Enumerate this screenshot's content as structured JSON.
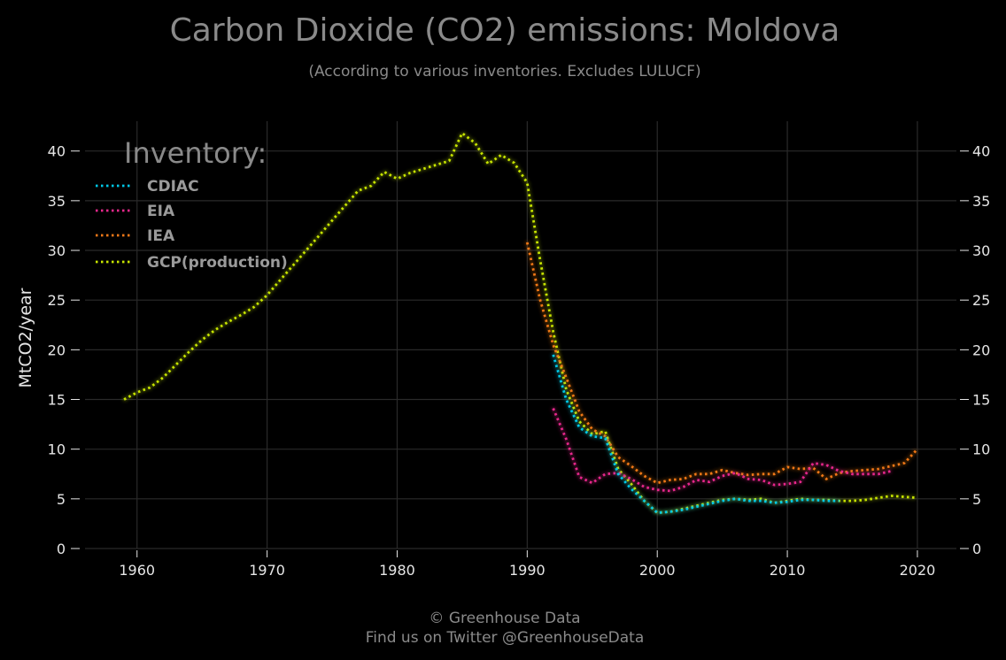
{
  "chart_data": {
    "type": "line",
    "title": "Carbon Dioxide (CO2) emissions: Moldova",
    "subtitle": "(According to various inventories. Excludes LULUCF)",
    "xlabel": "",
    "ylabel": "MtCO2/year",
    "xlim": [
      1956,
      2023
    ],
    "ylim": [
      0,
      43
    ],
    "xticks": [
      1960,
      1970,
      1980,
      1990,
      2000,
      2010,
      2020
    ],
    "yticks": [
      0,
      5,
      10,
      15,
      20,
      25,
      30,
      35,
      40
    ],
    "grid": true,
    "legend": {
      "title": "Inventory:",
      "placement": "top-left"
    },
    "series": [
      {
        "name": "CDIAC",
        "color": "#00c8e8",
        "x": [
          1992,
          1993,
          1994,
          1995,
          1996,
          1997,
          1998,
          1999,
          2000,
          2001,
          2002,
          2003,
          2004,
          2005,
          2006,
          2007,
          2008,
          2009,
          2010,
          2011,
          2012,
          2013,
          2014
        ],
        "y": [
          19.5,
          15.0,
          12.2,
          11.3,
          11.1,
          7.5,
          6.0,
          4.8,
          3.6,
          3.7,
          3.9,
          4.2,
          4.5,
          4.8,
          5.0,
          4.8,
          4.8,
          4.6,
          4.7,
          4.9,
          4.9,
          4.8,
          4.8
        ]
      },
      {
        "name": "EIA",
        "color": "#e8288c",
        "x": [
          1992,
          1993,
          1994,
          1995,
          1996,
          1997,
          1998,
          1999,
          2000,
          2001,
          2002,
          2003,
          2004,
          2005,
          2006,
          2007,
          2008,
          2009,
          2010,
          2011,
          2012,
          2013,
          2014,
          2015,
          2016,
          2017,
          2018
        ],
        "y": [
          14.1,
          11.0,
          7.2,
          6.6,
          7.5,
          7.6,
          7.0,
          6.2,
          5.9,
          5.8,
          6.2,
          6.9,
          6.7,
          7.3,
          7.6,
          7.0,
          6.9,
          6.4,
          6.5,
          6.7,
          8.6,
          8.4,
          7.8,
          7.5,
          7.5,
          7.5,
          7.8
        ]
      },
      {
        "name": "IEA",
        "color": "#f07818",
        "x": [
          1990,
          1991,
          1992,
          1993,
          1994,
          1995,
          1996,
          1997,
          1998,
          1999,
          2000,
          2001,
          2002,
          2003,
          2004,
          2005,
          2006,
          2007,
          2008,
          2009,
          2010,
          2011,
          2012,
          2013,
          2014,
          2015,
          2016,
          2017,
          2018,
          2019,
          2020
        ],
        "y": [
          30.8,
          25.0,
          20.5,
          17.2,
          13.8,
          12.0,
          11.3,
          9.2,
          8.3,
          7.3,
          6.6,
          6.9,
          7.0,
          7.5,
          7.5,
          7.9,
          7.6,
          7.4,
          7.5,
          7.5,
          8.2,
          8.0,
          8.1,
          7.0,
          7.6,
          7.8,
          7.9,
          8.0,
          8.3,
          8.6,
          10.0
        ]
      },
      {
        "name": "GCP(production)",
        "color": "#c8e600",
        "x": [
          1959,
          1960,
          1961,
          1962,
          1963,
          1964,
          1965,
          1966,
          1967,
          1968,
          1969,
          1970,
          1971,
          1972,
          1973,
          1974,
          1975,
          1976,
          1977,
          1978,
          1979,
          1980,
          1981,
          1982,
          1983,
          1984,
          1985,
          1986,
          1987,
          1988,
          1989,
          1990,
          1991,
          1992,
          1993,
          1994,
          1995,
          1996,
          1997,
          1998,
          1999,
          2000,
          2001,
          2002,
          2003,
          2004,
          2005,
          2006,
          2007,
          2008,
          2009,
          2010,
          2011,
          2012,
          2013,
          2014,
          2015,
          2016,
          2017,
          2018,
          2019,
          2020
        ],
        "y": [
          15.0,
          15.7,
          16.2,
          17.2,
          18.5,
          19.8,
          21.0,
          22.0,
          22.8,
          23.5,
          24.3,
          25.5,
          27.0,
          28.5,
          30.0,
          31.5,
          33.0,
          34.5,
          36.0,
          36.5,
          37.9,
          37.2,
          37.8,
          38.2,
          38.6,
          39.0,
          41.8,
          40.8,
          38.7,
          39.6,
          38.8,
          36.8,
          29.0,
          21.8,
          16.0,
          12.8,
          11.5,
          11.8,
          8.0,
          6.5,
          4.8,
          3.6,
          3.7,
          4.0,
          4.3,
          4.6,
          4.9,
          5.0,
          4.9,
          5.0,
          4.6,
          4.8,
          5.0,
          4.9,
          4.9,
          4.8,
          4.8,
          4.9,
          5.1,
          5.3,
          5.2,
          5.1
        ]
      }
    ]
  },
  "footer": {
    "copyright": "© Greenhouse Data",
    "twitter": "Find us on Twitter @GreenhouseData"
  }
}
